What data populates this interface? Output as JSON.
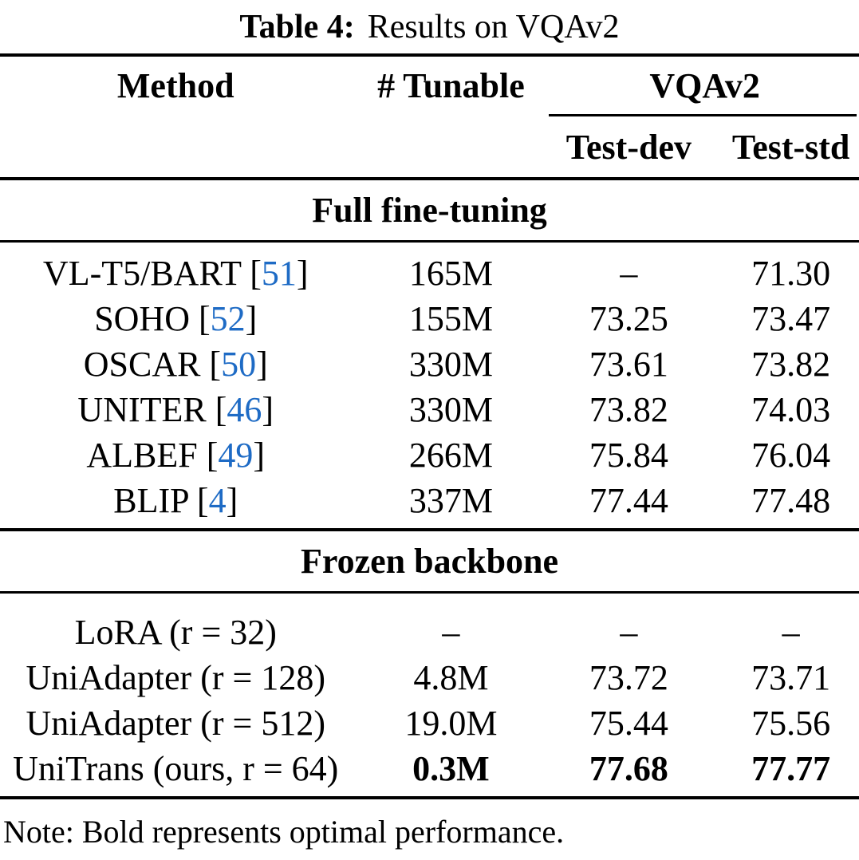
{
  "caption": {
    "label": "Table 4:",
    "text": "Results on VQAv2"
  },
  "header": {
    "method": "Method",
    "tunable": "# Tunable",
    "group": "VQAv2",
    "sub_dev": "Test-dev",
    "sub_std": "Test-std"
  },
  "sections": [
    {
      "title": "Full fine-tuning",
      "rows": [
        {
          "pre": "VL-T5/BART [",
          "cite": "51",
          "post": "]",
          "tunable": "165M",
          "test_dev": "–",
          "test_std": "71.30"
        },
        {
          "pre": "SOHO [",
          "cite": "52",
          "post": "]",
          "tunable": "155M",
          "test_dev": "73.25",
          "test_std": "73.47"
        },
        {
          "pre": "OSCAR [",
          "cite": "50",
          "post": "]",
          "tunable": "330M",
          "test_dev": "73.61",
          "test_std": "73.82"
        },
        {
          "pre": "UNITER [",
          "cite": "46",
          "post": "]",
          "tunable": "330M",
          "test_dev": "73.82",
          "test_std": "74.03"
        },
        {
          "pre": "ALBEF [",
          "cite": "49",
          "post": "]",
          "tunable": "266M",
          "test_dev": "75.84",
          "test_std": "76.04"
        },
        {
          "pre": "BLIP [",
          "cite": "4",
          "post": "]",
          "tunable": "337M",
          "test_dev": "77.44",
          "test_std": "77.48"
        }
      ]
    },
    {
      "title": "Frozen backbone",
      "rows": [
        {
          "pre": "LoRA (r = 32)",
          "cite": "",
          "post": "",
          "tunable": "–",
          "test_dev": "–",
          "test_std": "–"
        },
        {
          "pre": "UniAdapter (r = 128)",
          "cite": "",
          "post": "",
          "tunable": "4.8M",
          "test_dev": "73.72",
          "test_std": "73.71"
        },
        {
          "pre": "UniAdapter (r = 512)",
          "cite": "",
          "post": "",
          "tunable": "19.0M",
          "test_dev": "75.44",
          "test_std": "75.56"
        },
        {
          "pre": "UniTrans (ours, r = 64)",
          "cite": "",
          "post": "",
          "tunable": "0.3M",
          "test_dev": "77.68",
          "test_std": "77.77"
        }
      ]
    }
  ],
  "note": "Note: Bold represents optimal performance.",
  "colors": {
    "text": "#000000",
    "background": "#ffffff",
    "citation": "#1e6bc5"
  },
  "chart_data": {
    "type": "table",
    "title": "Table 4: Results on VQAv2",
    "columns": [
      "Method",
      "# Tunable",
      "VQAv2 Test-dev",
      "VQAv2 Test-std"
    ],
    "groups": [
      {
        "name": "Full fine-tuning",
        "rows": [
          [
            "VL-T5/BART [51]",
            "165M",
            null,
            71.3
          ],
          [
            "SOHO [52]",
            "155M",
            73.25,
            73.47
          ],
          [
            "OSCAR [50]",
            "330M",
            73.61,
            73.82
          ],
          [
            "UNITER [46]",
            "330M",
            73.82,
            74.03
          ],
          [
            "ALBEF [49]",
            "266M",
            75.84,
            76.04
          ],
          [
            "BLIP [4]",
            "337M",
            77.44,
            77.48
          ]
        ]
      },
      {
        "name": "Frozen backbone",
        "rows": [
          [
            "LoRA (r = 32)",
            null,
            null,
            null
          ],
          [
            "UniAdapter (r = 128)",
            "4.8M",
            73.72,
            73.71
          ],
          [
            "UniAdapter (r = 512)",
            "19.0M",
            75.44,
            75.56
          ],
          [
            "UniTrans (ours, r = 64)",
            "0.3M",
            77.68,
            77.77
          ]
        ]
      }
    ]
  }
}
